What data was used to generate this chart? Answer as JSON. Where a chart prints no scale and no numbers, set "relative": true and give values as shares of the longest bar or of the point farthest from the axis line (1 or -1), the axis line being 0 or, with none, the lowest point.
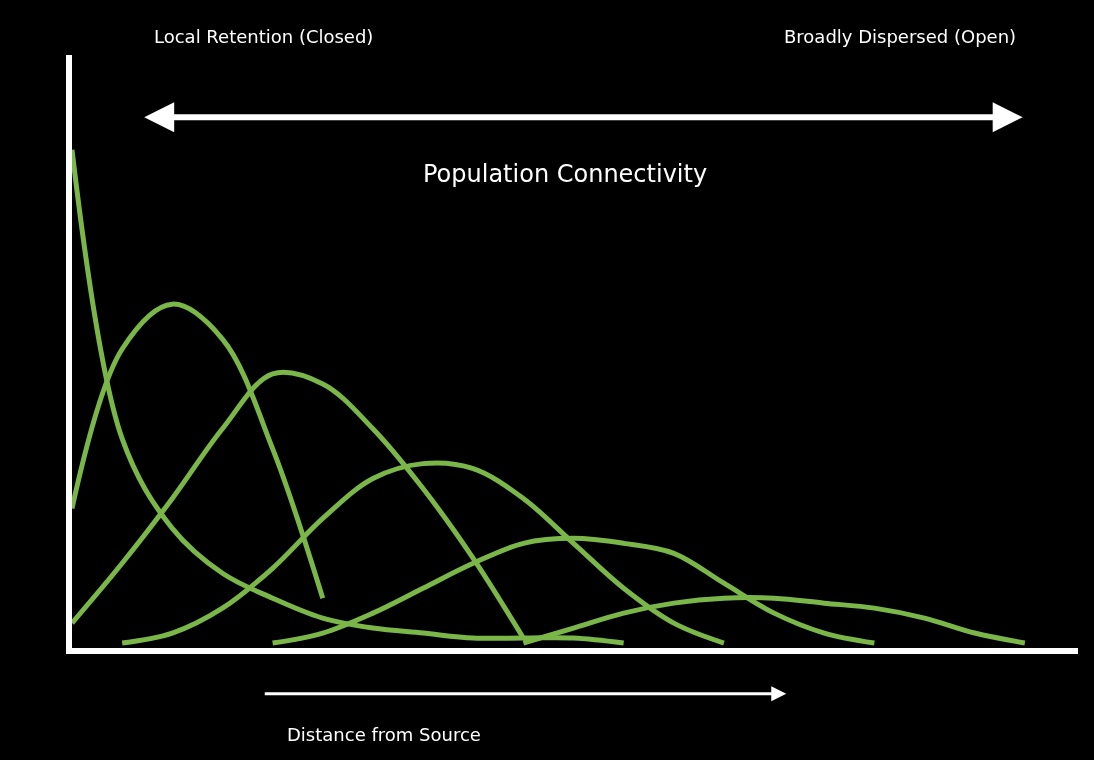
{
  "chart_data": {
    "type": "line",
    "relative": true,
    "grid": false,
    "marker": "none",
    "line_style": "solid",
    "categories": [
      null,
      null,
      null,
      null,
      null,
      null,
      null,
      null,
      null,
      null,
      null,
      null,
      null,
      null,
      null,
      null,
      null,
      null,
      null,
      null,
      null
    ],
    "series": [
      {
        "color": "#7ab648",
        "values": [
          1.0,
          0.42,
          0.24,
          0.15,
          0.1,
          0.06,
          0.04,
          0.03,
          0.02,
          0.02,
          0.02,
          0.01,
          null,
          null,
          null,
          null,
          null,
          null,
          null,
          null,
          null
        ]
      },
      {
        "color": "#7ab648",
        "values": [
          0.28,
          0.6,
          0.69,
          0.62,
          0.4,
          0.1,
          null,
          null,
          null,
          null,
          null,
          null,
          null,
          null,
          null,
          null,
          null,
          null,
          null,
          null,
          null
        ]
      },
      {
        "color": "#7ab648",
        "values": [
          0.05,
          0.17,
          0.3,
          0.44,
          0.55,
          0.53,
          0.44,
          0.32,
          0.18,
          0.02,
          null,
          null,
          null,
          null,
          null,
          null,
          null,
          null,
          null,
          null,
          null
        ]
      },
      {
        "color": "#7ab648",
        "values": [
          null,
          0.01,
          0.03,
          0.08,
          0.16,
          0.26,
          0.34,
          0.37,
          0.36,
          0.3,
          0.21,
          0.12,
          0.05,
          0.01,
          null,
          null,
          null,
          null,
          null,
          null,
          null
        ]
      },
      {
        "color": "#7ab648",
        "values": [
          null,
          null,
          null,
          null,
          0.01,
          0.03,
          0.07,
          0.12,
          0.17,
          0.21,
          0.22,
          0.21,
          0.19,
          0.13,
          0.07,
          0.03,
          0.01,
          null,
          null,
          null,
          null
        ]
      },
      {
        "color": "#7ab648",
        "values": [
          null,
          null,
          null,
          null,
          null,
          null,
          null,
          null,
          null,
          0.01,
          0.04,
          0.07,
          0.09,
          0.1,
          0.1,
          0.09,
          0.08,
          0.06,
          0.03,
          0.01,
          null
        ]
      }
    ],
    "annotations": [
      "Local Retention (Closed)",
      "Broadly Dispersed (Open)",
      "Population Connectivity",
      "Distance from Source"
    ]
  }
}
